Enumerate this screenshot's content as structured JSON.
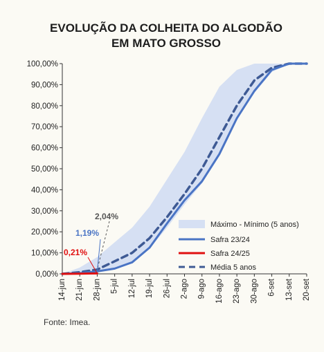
{
  "chart_data": {
    "type": "line",
    "title_lines": [
      "EVOLUÇÃO DA COLHEITA DO ALGODÃO",
      "EM MATO GROSSO"
    ],
    "categories": [
      "14-jun",
      "21-jun",
      "28-jun",
      "5-jul",
      "12-jul",
      "19-jul",
      "26-jul",
      "2-ago",
      "9-ago",
      "16-ago",
      "23-ago",
      "30-ago",
      "6-set",
      "13-set",
      "20-set"
    ],
    "y_ticks": [
      "0,00%",
      "10,00%",
      "20,00%",
      "30,00%",
      "40,00%",
      "50,00%",
      "60,00%",
      "70,00%",
      "80,00%",
      "90,00%",
      "100,00%"
    ],
    "ylim": [
      0,
      100
    ],
    "grid": false,
    "legend_position": "bottom-right",
    "band": {
      "name": "Máximo - Mínimo (5 anos)",
      "color": "#d6e0f3",
      "max": [
        0,
        3,
        8,
        15,
        22,
        32,
        45,
        58,
        74,
        89,
        97,
        100,
        100,
        100,
        100
      ],
      "min": [
        0,
        0,
        1,
        3,
        6,
        12,
        22,
        33,
        43,
        56,
        73,
        86,
        96,
        100,
        100
      ]
    },
    "series": [
      {
        "name": "Safra 23/24",
        "color": "#4a74c4",
        "style": "solid",
        "values": [
          0,
          0.3,
          1.19,
          2.5,
          5.5,
          12.5,
          24,
          35,
          44,
          57,
          74,
          87,
          97,
          100,
          100
        ]
      },
      {
        "name": "Safra 24/25",
        "color": "#e01010",
        "style": "solid",
        "values": [
          0,
          0.1,
          0.21,
          null,
          null,
          null,
          null,
          null,
          null,
          null,
          null,
          null,
          null,
          null,
          null
        ]
      },
      {
        "name": "Média 5 anos",
        "color": "#3e5a94",
        "style": "dashed",
        "values": [
          0,
          0.8,
          2.04,
          6,
          10,
          17,
          27,
          38,
          50,
          65,
          80,
          92,
          98,
          100,
          100
        ]
      }
    ],
    "annotations": [
      {
        "text": "2,04%",
        "color": "#555555",
        "x": "28-jun",
        "y": 2.04
      },
      {
        "text": "1,19%",
        "color": "#4a74c4",
        "x": "28-jun",
        "y": 1.19
      },
      {
        "text": "0,21%",
        "color": "#e01010",
        "x": "28-jun",
        "y": 0.21
      }
    ]
  },
  "source": "Fonte: Imea."
}
